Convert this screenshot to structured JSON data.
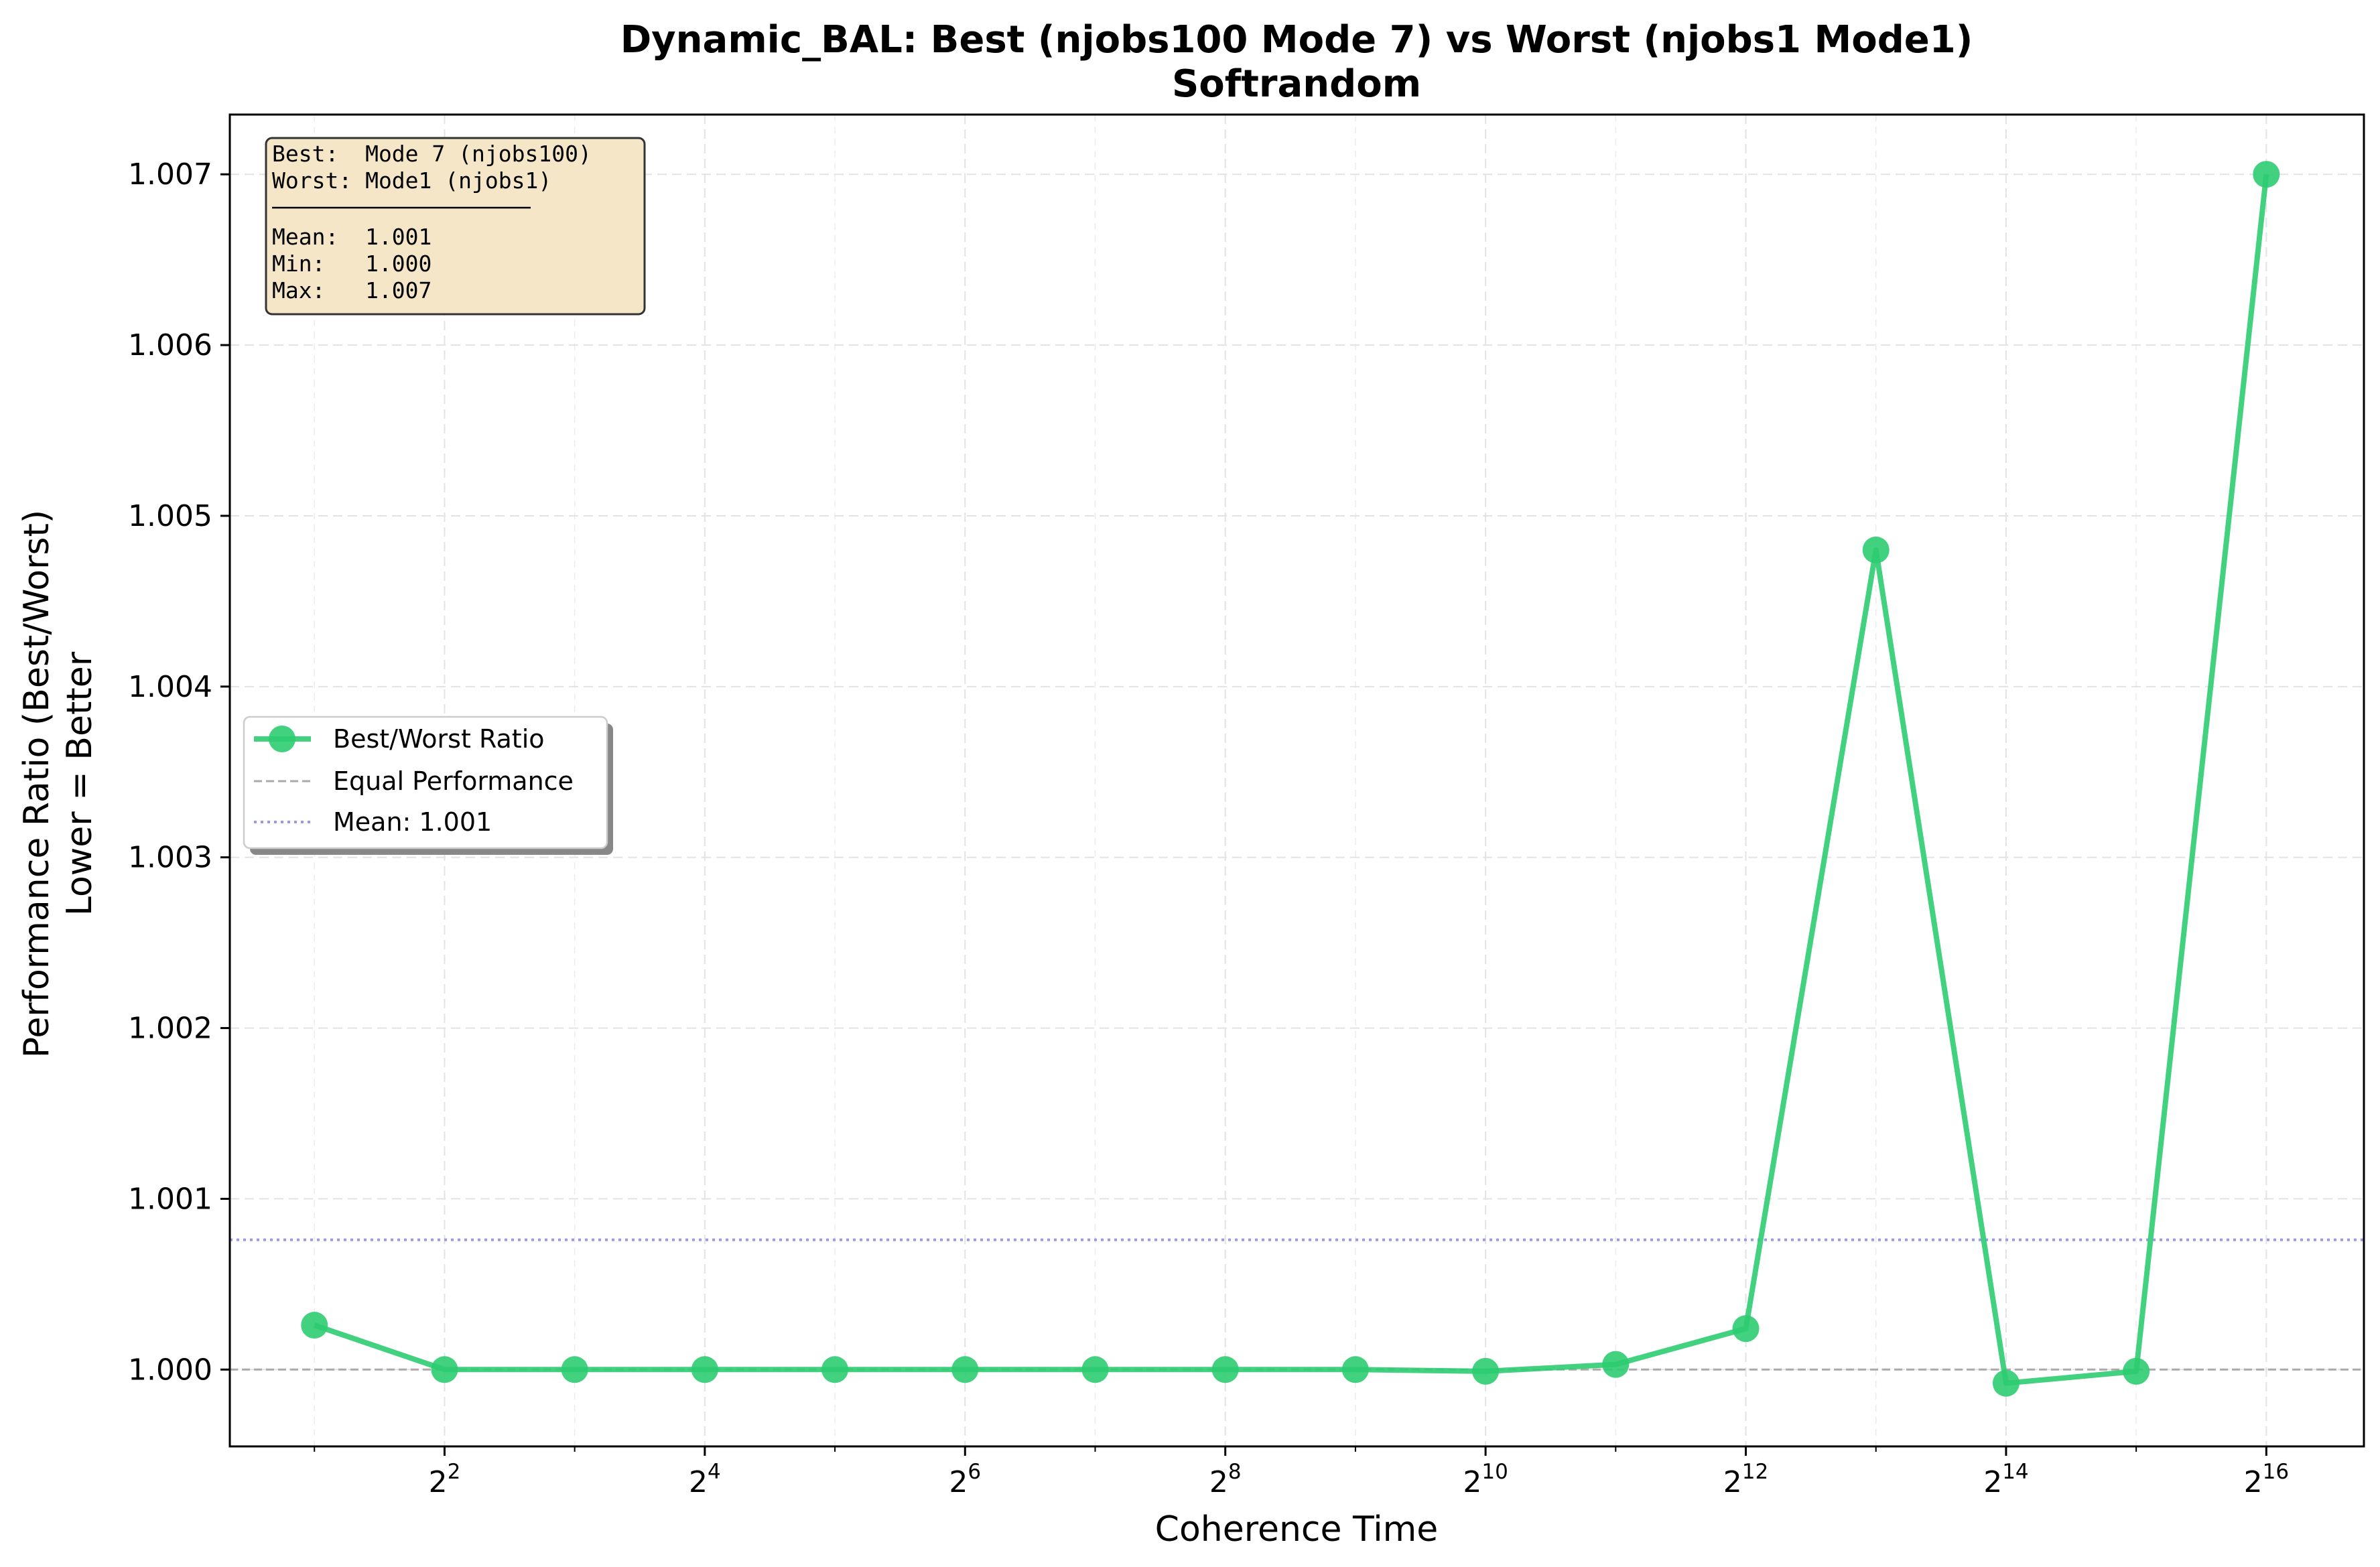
{
  "chart_data": {
    "type": "line",
    "title": "Dynamic_BAL: Best (njobs100 Mode 7) vs Worst (njobs1 Mode1)",
    "subtitle": "Softrandom",
    "xlabel": "Coherence Time",
    "ylabel": "Performance Ratio (Best/Worst)",
    "ylabel_line2": "Lower = Better",
    "x_scale": "log2",
    "x_range_exponent": [
      0.35,
      16.75
    ],
    "ylim": [
      0.99955,
      1.00735
    ],
    "x_ticks": [
      {
        "exp": 2,
        "base": "2",
        "sup": "2"
      },
      {
        "exp": 4,
        "base": "2",
        "sup": "4"
      },
      {
        "exp": 6,
        "base": "2",
        "sup": "6"
      },
      {
        "exp": 8,
        "base": "2",
        "sup": "8"
      },
      {
        "exp": 10,
        "base": "2",
        "sup": "10"
      },
      {
        "exp": 12,
        "base": "2",
        "sup": "12"
      },
      {
        "exp": 14,
        "base": "2",
        "sup": "14"
      },
      {
        "exp": 16,
        "base": "2",
        "sup": "16"
      }
    ],
    "y_ticks": [
      {
        "value": 1.0,
        "label": "1.000"
      },
      {
        "value": 1.001,
        "label": "1.001"
      },
      {
        "value": 1.002,
        "label": "1.002"
      },
      {
        "value": 1.003,
        "label": "1.003"
      },
      {
        "value": 1.004,
        "label": "1.004"
      },
      {
        "value": 1.005,
        "label": "1.005"
      },
      {
        "value": 1.006,
        "label": "1.006"
      },
      {
        "value": 1.007,
        "label": "1.007"
      }
    ],
    "x_minor_gridlines_exp": [
      1,
      3,
      5,
      7,
      9,
      11,
      13,
      15
    ],
    "grid": true,
    "series": [
      {
        "name": "Best/Worst Ratio",
        "color": "#2ecc71",
        "x": [
          2,
          4,
          8,
          16,
          32,
          64,
          128,
          256,
          512,
          1024,
          2048,
          4096,
          8192,
          16384,
          32768,
          65536
        ],
        "y": [
          1.00026,
          1.0,
          1.0,
          1.0,
          1.0,
          1.0,
          1.0,
          1.0,
          1.0,
          0.99999,
          1.00003,
          1.00024,
          1.0048,
          0.99992,
          0.99999,
          1.007
        ]
      }
    ],
    "reference_lines": [
      {
        "name": "Equal Performance",
        "value": 1.0,
        "color": "#aaaaaa",
        "style": "dashed"
      },
      {
        "name": "Mean: 1.001",
        "value": 1.00076,
        "color": "#9999ee",
        "style": "dotted"
      }
    ],
    "legend": {
      "placement": "center-left",
      "entries": [
        "Best/Worst Ratio",
        "Equal Performance",
        "Mean: 1.001"
      ]
    },
    "stats_box": {
      "placement": "top-left",
      "lines": [
        "Best:  Mode 7 (njobs100)",
        "Worst: Mode1 (njobs1)",
        "Mean:  1.001",
        "Min:   1.000",
        "Max:   1.007"
      ],
      "background": "#f5e6c8"
    }
  }
}
